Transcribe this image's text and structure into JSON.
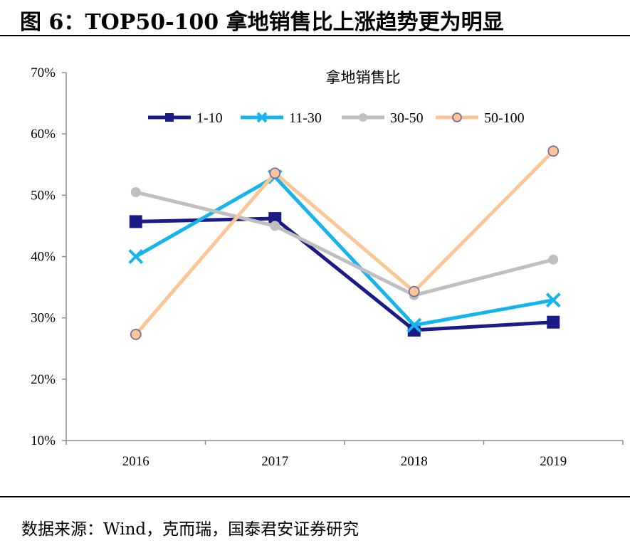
{
  "figure": {
    "title": "图 6：TOP50-100 拿地销售比上涨趋势更为明显",
    "source": "数据来源：Wind，克而瑞，国泰君安证券研究"
  },
  "chart_data": {
    "type": "line",
    "title": "拿地销售比",
    "xlabel": "",
    "ylabel": "",
    "categories": [
      "2016",
      "2017",
      "2018",
      "2019"
    ],
    "ylim": [
      10,
      70
    ],
    "yticks": [
      "10%",
      "20%",
      "30%",
      "40%",
      "50%",
      "60%",
      "70%"
    ],
    "grid": false,
    "legend_position": "top",
    "series": [
      {
        "name": "1-10",
        "values": [
          45.7,
          46.2,
          28.0,
          29.3
        ],
        "color": "#1b1b87",
        "marker": "square"
      },
      {
        "name": "11-30",
        "values": [
          40.0,
          53.0,
          28.8,
          32.9
        ],
        "color": "#16b4ee",
        "marker": "x"
      },
      {
        "name": "30-50",
        "values": [
          50.5,
          45.0,
          33.7,
          39.5
        ],
        "color": "#bfbfbf",
        "marker": "circle"
      },
      {
        "name": "50-100",
        "values": [
          27.3,
          53.6,
          34.3,
          57.2
        ],
        "color": "#fcc594",
        "marker": "circle-outline"
      }
    ]
  }
}
